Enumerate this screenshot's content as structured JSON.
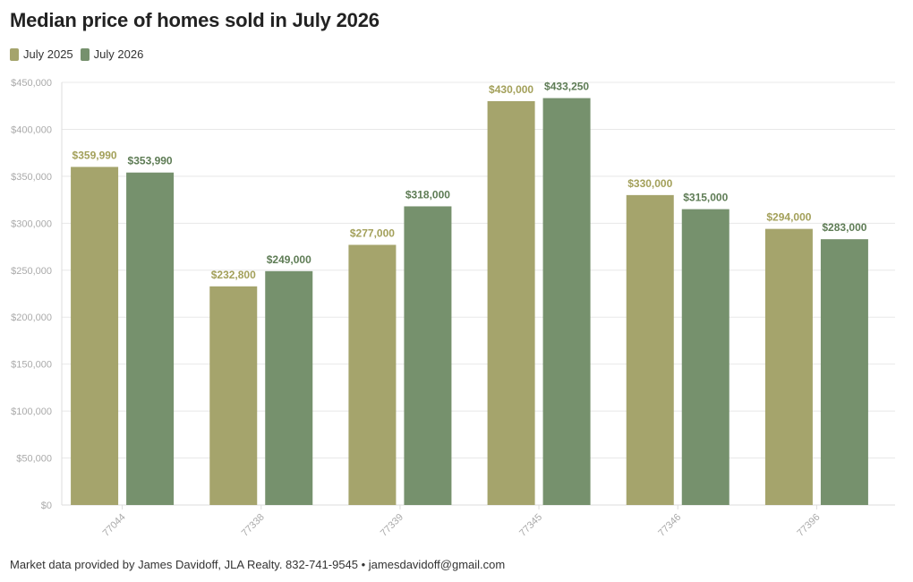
{
  "title": "Median price of homes sold in July 2026",
  "footer": "Market data provided by James Davidoff, JLA Realty. 832-741-9545 • jamesdavidoff@gmail.com",
  "colors": {
    "july_2025": "#a5a46c",
    "july_2026": "#76916d",
    "july_2025_label": "#a3a05a",
    "july_2026_label": "#5e7c55",
    "grid": "#e8e8e8",
    "axis": "#dddddd"
  },
  "chart_data": {
    "type": "bar",
    "title": "Median price of homes sold in July 2026",
    "xlabel": "",
    "ylabel": "",
    "categories": [
      "77044",
      "77338",
      "77339",
      "77345",
      "77346",
      "77396"
    ],
    "series": [
      {
        "name": "July 2025",
        "values": [
          359990,
          232800,
          277000,
          430000,
          330000,
          294000
        ],
        "labels": [
          "$359,990",
          "$232,800",
          "$277,000",
          "$430,000",
          "$330,000",
          "$294,000"
        ]
      },
      {
        "name": "July 2026",
        "values": [
          353990,
          249000,
          318000,
          433250,
          315000,
          283000
        ],
        "labels": [
          "$353,990",
          "$249,000",
          "$318,000",
          "$433,250",
          "$315,000",
          "$283,000"
        ]
      }
    ],
    "ylim": [
      0,
      450000
    ],
    "yticks": [
      0,
      50000,
      100000,
      150000,
      200000,
      250000,
      300000,
      350000,
      400000,
      450000
    ],
    "ytick_labels": [
      "$0",
      "$50,000",
      "$100,000",
      "$150,000",
      "$200,000",
      "$250,000",
      "$300,000",
      "$350,000",
      "$400,000",
      "$450,000"
    ],
    "grid": true,
    "legend": "top-left"
  }
}
